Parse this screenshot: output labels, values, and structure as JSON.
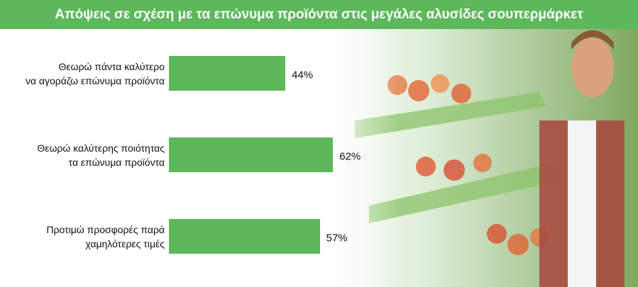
{
  "chart_data": {
    "type": "bar",
    "orientation": "horizontal",
    "title": "Απόψεις σε σχέση με τα επώνυμα προϊόντα στις μεγάλες αλυσίδες σουπερμάρκετ",
    "categories": [
      "Θεωρώ πάντα καλύτερο\nνα αγοράζω επώνυμα προϊόντα",
      "Θεωρώ καλύτερης ποιότητας\nτα επώνυμα προϊόντα",
      "Προτιμώ προσφορές παρά\nχαμηλότερες τιμές"
    ],
    "values": [
      44,
      62,
      57
    ],
    "value_labels": [
      "44%",
      "62%",
      "57%"
    ],
    "color": "#5cb85b"
  }
}
